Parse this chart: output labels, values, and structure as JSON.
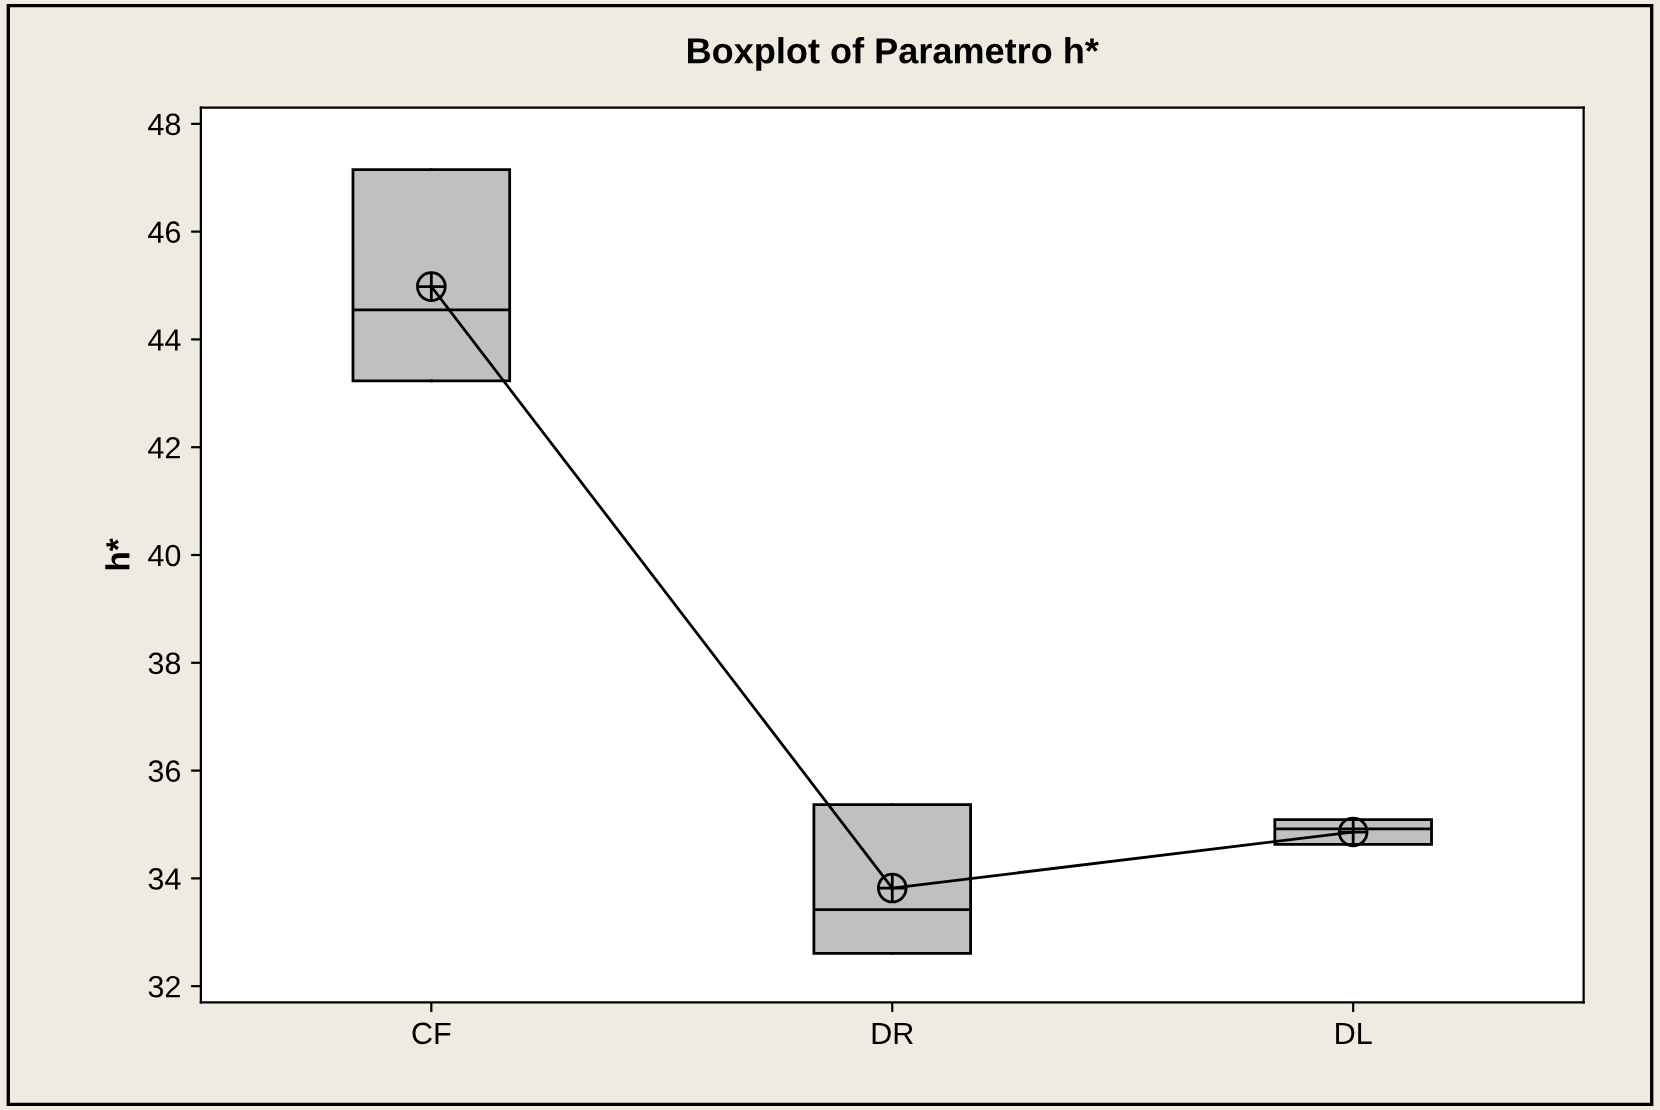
{
  "chart_data": {
    "type": "box",
    "title": "Boxplot of Parametro h*",
    "ylabel": "h*",
    "categories": [
      "CF",
      "DR",
      "DL"
    ],
    "boxes": [
      {
        "low": 43.23,
        "q1": 43.23,
        "median": 44.55,
        "q3": 47.15,
        "high": 47.15
      },
      {
        "low": 32.61,
        "q1": 32.61,
        "median": 33.42,
        "q3": 35.37,
        "high": 35.37
      },
      {
        "low": 34.63,
        "q1": 34.63,
        "median": 34.92,
        "q3": 35.09,
        "high": 35.09
      }
    ],
    "color": "#c0c0c0",
    "series": [
      {
        "type": "line",
        "color": "#000000",
        "x": [
          "CF",
          "DR",
          "DL"
        ],
        "values": [
          44.98,
          33.82,
          34.86
        ]
      }
    ],
    "marker": "circle",
    "ylim": [
      31.7,
      48.3
    ],
    "yticks": [
      32,
      34,
      36,
      38,
      40,
      42,
      44,
      46,
      48
    ],
    "grid": false,
    "legend": false
  }
}
